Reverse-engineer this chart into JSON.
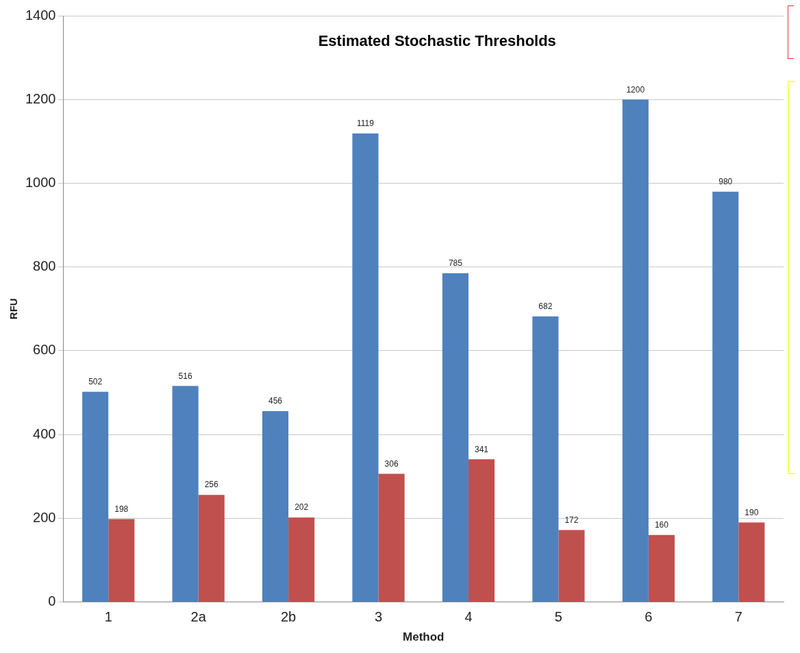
{
  "chart_data": {
    "type": "bar",
    "title": "Estimated Stochastic Thresholds",
    "xlabel": "Method",
    "ylabel": "RFU",
    "categories": [
      "1",
      "2a",
      "2b",
      "3",
      "4",
      "5",
      "6",
      "7"
    ],
    "series": [
      {
        "color": "#4f81bd",
        "values": [
          502,
          516,
          456,
          1119,
          785,
          682,
          1200,
          980
        ]
      },
      {
        "color": "#c0504d",
        "values": [
          198,
          256,
          202,
          306,
          341,
          172,
          160,
          190
        ]
      }
    ],
    "ylim": [
      0,
      1400
    ],
    "yticks": [
      0,
      200,
      400,
      600,
      800,
      1000,
      1200,
      1400
    ],
    "grid": "y",
    "legend": false,
    "data_labels": true
  }
}
